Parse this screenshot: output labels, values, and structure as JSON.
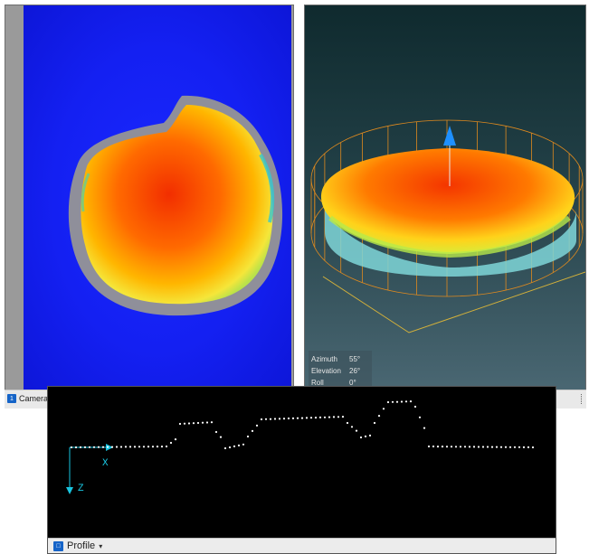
{
  "camera_panel": {
    "tab_label": "Camera",
    "tab_badge": "1"
  },
  "view3d_panel": {
    "orientation": [
      {
        "label": "Azimuth",
        "value": "55°"
      },
      {
        "label": "Elevation",
        "value": "26°"
      },
      {
        "label": "Roll",
        "value": "0°"
      }
    ]
  },
  "profile_panel": {
    "title": "Profile",
    "x_axis_label": "X",
    "z_axis_label": "Z",
    "caret": "▾"
  },
  "colors": {
    "background_blue": "#1420f2",
    "axis_cyan": "#19c5e0",
    "bbox_orange": "#e08a1e",
    "profile_points": "#ffffff"
  }
}
